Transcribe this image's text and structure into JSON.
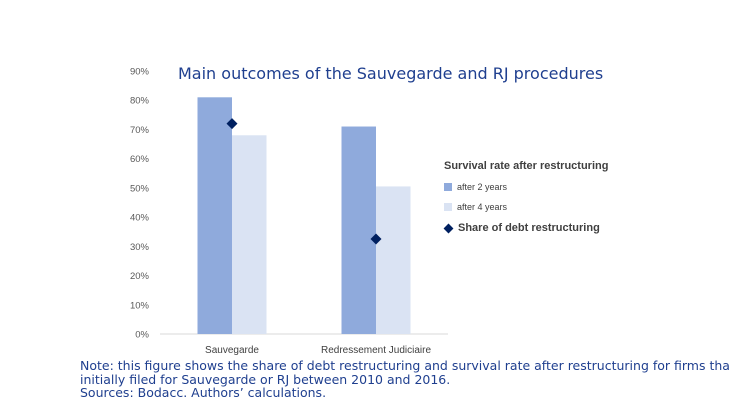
{
  "chart_data": {
    "type": "bar",
    "title": "Main outcomes of the Sauvegarde and RJ procedures",
    "categories": [
      "Sauvegarde",
      "Redressement Judiciaire"
    ],
    "series": [
      {
        "name": "after 2 years",
        "type": "bar",
        "values": [
          81,
          71
        ],
        "color": "#8faadc"
      },
      {
        "name": "after 4 years",
        "type": "bar",
        "values": [
          68,
          50.5
        ],
        "color": "#dae3f3"
      },
      {
        "name": "Share of debt restructuring",
        "type": "marker",
        "values": [
          72,
          32.5
        ],
        "color": "#002060"
      }
    ],
    "legend_title": "Survival rate after restructuring",
    "legend_position": "right",
    "ylim": [
      0,
      90
    ],
    "yticks": [
      0,
      10,
      20,
      30,
      40,
      50,
      60,
      70,
      80,
      90
    ],
    "ytick_labels": [
      "0%",
      "10%",
      "20%",
      "30%",
      "40%",
      "50%",
      "60%",
      "70%",
      "80%",
      "90%"
    ],
    "xlabel": "",
    "ylabel": "",
    "grid": false
  },
  "note": {
    "line1": "Note: this figure shows the share of debt restructuring and survival rate after restructuring for firms that",
    "line2": "initially filed for Sauvegarde or RJ between 2010 and 2016.",
    "line3": "Sources: Bodacc. Authors’ calculations."
  }
}
